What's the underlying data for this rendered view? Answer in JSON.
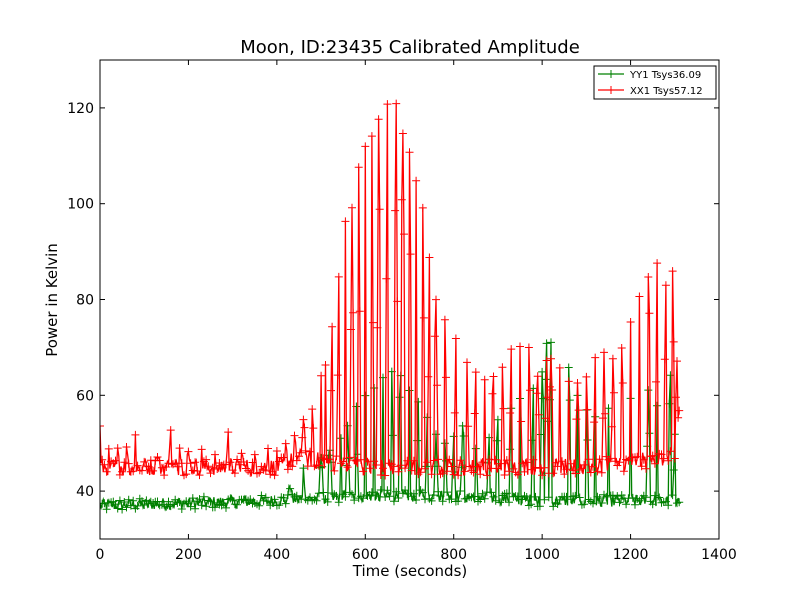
{
  "chart_data": {
    "type": "line",
    "title": "Moon, ID:23435 Calibrated Amplitude",
    "xlabel": "Time (seconds)",
    "ylabel": "Power in Kelvin",
    "xlim": [
      0,
      1400
    ],
    "ylim": [
      30,
      130
    ],
    "xticks": [
      "0",
      "200",
      "400",
      "600",
      "800",
      "1000",
      "1200",
      "1400"
    ],
    "yticks": [
      "40",
      "60",
      "80",
      "100",
      "120"
    ],
    "grid": false,
    "legend_position": "top-right",
    "marker": "plus",
    "x_end": 1310,
    "series": [
      {
        "name": "YY1 Tsys36.09",
        "color": "#008000",
        "baseline": [
          [
            0,
            37
          ],
          [
            400,
            38
          ],
          [
            600,
            39
          ],
          [
            800,
            39
          ],
          [
            1000,
            38
          ],
          [
            1100,
            38
          ],
          [
            1300,
            38
          ]
        ],
        "peaks": [
          [
            430,
            42
          ],
          [
            460,
            45
          ],
          [
            500,
            47
          ],
          [
            520,
            50
          ],
          [
            545,
            52
          ],
          [
            560,
            55
          ],
          [
            580,
            58
          ],
          [
            600,
            60
          ],
          [
            620,
            62
          ],
          [
            640,
            64
          ],
          [
            660,
            66
          ],
          [
            680,
            65
          ],
          [
            700,
            62
          ],
          [
            720,
            60
          ],
          [
            740,
            56
          ],
          [
            760,
            52
          ],
          [
            780,
            50
          ],
          [
            800,
            52
          ],
          [
            820,
            55
          ],
          [
            850,
            50
          ],
          [
            880,
            52
          ],
          [
            900,
            55
          ],
          [
            930,
            58
          ],
          [
            950,
            60
          ],
          [
            980,
            62
          ],
          [
            1000,
            65
          ],
          [
            1010,
            72
          ],
          [
            1020,
            72
          ],
          [
            1060,
            66
          ],
          [
            1080,
            60
          ],
          [
            1100,
            58
          ],
          [
            1120,
            56
          ],
          [
            1150,
            58
          ],
          [
            1200,
            60
          ],
          [
            1240,
            62
          ],
          [
            1260,
            58
          ],
          [
            1290,
            65
          ],
          [
            1300,
            52
          ]
        ]
      },
      {
        "name": "XX1 Tsys57.12",
        "color": "#ff0000",
        "baseline": [
          [
            0,
            45
          ],
          [
            400,
            45
          ],
          [
            450,
            47
          ],
          [
            600,
            45
          ],
          [
            800,
            45
          ],
          [
            1000,
            45
          ],
          [
            1100,
            45
          ],
          [
            1300,
            47
          ]
        ],
        "peaks": [
          [
            0,
            54
          ],
          [
            20,
            50
          ],
          [
            40,
            49
          ],
          [
            60,
            50
          ],
          [
            80,
            52
          ],
          [
            100,
            47
          ],
          [
            130,
            48
          ],
          [
            160,
            53
          ],
          [
            180,
            49
          ],
          [
            200,
            49
          ],
          [
            230,
            49
          ],
          [
            260,
            48
          ],
          [
            290,
            53
          ],
          [
            320,
            49
          ],
          [
            350,
            49
          ],
          [
            380,
            49
          ],
          [
            400,
            49
          ],
          [
            420,
            50
          ],
          [
            440,
            53
          ],
          [
            460,
            55
          ],
          [
            480,
            58
          ],
          [
            500,
            65
          ],
          [
            510,
            67
          ],
          [
            525,
            75
          ],
          [
            540,
            86
          ],
          [
            555,
            97
          ],
          [
            570,
            100
          ],
          [
            585,
            108
          ],
          [
            600,
            112
          ],
          [
            615,
            115
          ],
          [
            630,
            118
          ],
          [
            650,
            121
          ],
          [
            670,
            121
          ],
          [
            685,
            116
          ],
          [
            700,
            111
          ],
          [
            715,
            106
          ],
          [
            730,
            100
          ],
          [
            745,
            89
          ],
          [
            760,
            81
          ],
          [
            780,
            77
          ],
          [
            805,
            73
          ],
          [
            830,
            68
          ],
          [
            850,
            65
          ],
          [
            870,
            64
          ],
          [
            890,
            65
          ],
          [
            910,
            67
          ],
          [
            930,
            71
          ],
          [
            950,
            71
          ],
          [
            970,
            70
          ],
          [
            990,
            65
          ],
          [
            1010,
            68
          ],
          [
            1020,
            68
          ],
          [
            1040,
            66
          ],
          [
            1060,
            64
          ],
          [
            1080,
            63
          ],
          [
            1100,
            64
          ],
          [
            1120,
            68
          ],
          [
            1140,
            70
          ],
          [
            1160,
            68
          ],
          [
            1180,
            71
          ],
          [
            1200,
            76
          ],
          [
            1220,
            81
          ],
          [
            1240,
            86
          ],
          [
            1260,
            88
          ],
          [
            1280,
            84
          ],
          [
            1295,
            87
          ],
          [
            1305,
            68
          ],
          [
            1310,
            58
          ]
        ]
      }
    ]
  }
}
